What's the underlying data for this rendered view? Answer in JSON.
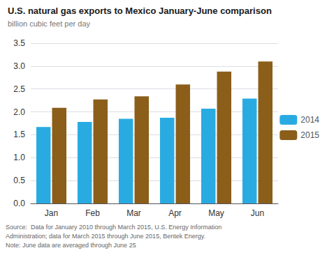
{
  "chart_data": {
    "type": "bar",
    "title": "U.S. natural gas exports to Mexico January-June comparison",
    "ylabel": "billion cubic feet per day",
    "categories": [
      "Jan",
      "Feb",
      "Mar",
      "Apr",
      "May",
      "Jun"
    ],
    "series": [
      {
        "name": "2014",
        "color": "#29ABE2",
        "values": [
          1.67,
          1.78,
          1.85,
          1.87,
          2.07,
          2.29
        ]
      },
      {
        "name": "2015",
        "color": "#8B5E1A",
        "values": [
          2.09,
          2.27,
          2.34,
          2.6,
          2.88,
          3.1
        ]
      }
    ],
    "ylim": [
      0,
      3.5
    ],
    "yticks": [
      {
        "value": 0,
        "label": "0.0"
      },
      0.5,
      {
        "value": 1,
        "label": "1.0"
      },
      1.5,
      {
        "value": 2,
        "label": "2.0"
      },
      2.5,
      {
        "value": 3,
        "label": "3.0"
      },
      3.5
    ],
    "grid": true,
    "legend": "right",
    "annotation": "Source:  Data for January 2010 through March 2015, U.S. Energy Information\nAdministration; data for March 2015 through June 2015, Bentek Energy.\nNote: June data are averaged through June 25"
  }
}
